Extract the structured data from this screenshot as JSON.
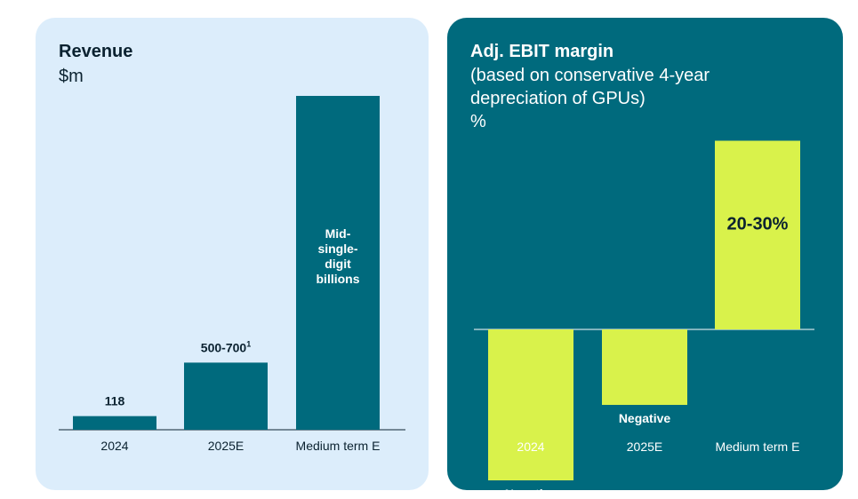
{
  "chart_data": [
    {
      "type": "bar",
      "title": "Revenue",
      "ylabel": "$m",
      "categories": [
        "2024",
        "2025E",
        "Medium term E"
      ],
      "values": [
        118,
        600,
        5000
      ],
      "data_labels": [
        "118",
        "500-700",
        "Mid-\nsingle-\ndigit\nbillions"
      ],
      "data_label_superscripts": [
        "",
        "1",
        ""
      ],
      "colors": {
        "panel": "#dcedfb",
        "bar": "#006a7d",
        "text": "#0b2230",
        "axis": "#0b2230"
      }
    },
    {
      "type": "bar",
      "title": "Adj. EBIT margin",
      "subtitle_lines": [
        "(based on conservative 4-year",
        "depreciation of GPUs)"
      ],
      "ylabel": "%",
      "categories": [
        "2024",
        "2025E",
        "Medium term E"
      ],
      "values": [
        -20,
        -10,
        25
      ],
      "data_labels": [
        "Negative",
        "Negative",
        "20-30%"
      ],
      "colors": {
        "panel": "#006a7d",
        "bar": "#d9f24b",
        "text": "#ffffff",
        "label_on_bar": "#0b2230",
        "axis": "#ffffff"
      }
    }
  ]
}
